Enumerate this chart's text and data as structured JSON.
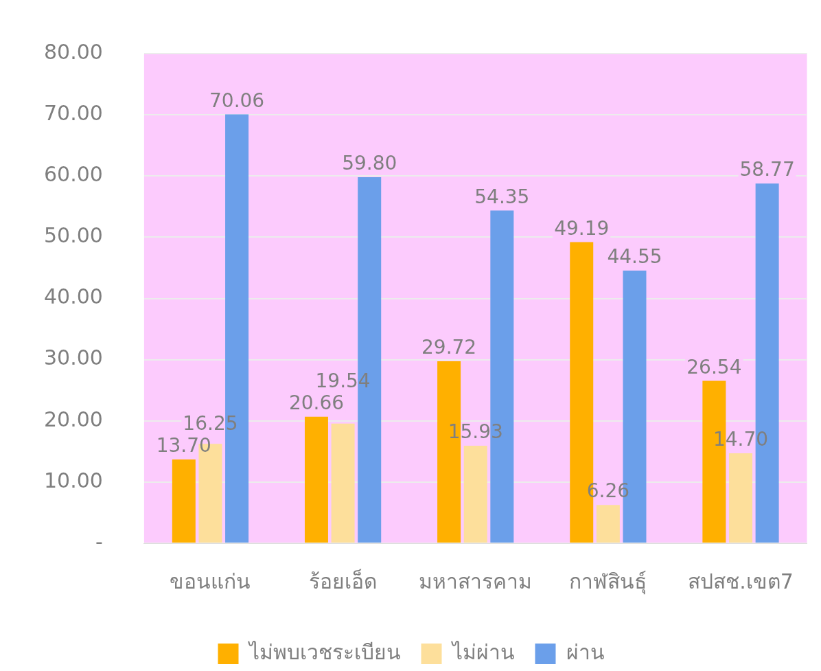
{
  "chart_data": {
    "type": "bar",
    "categories": [
      "ขอนแก่น",
      "ร้อยเอ็ด",
      "มหาสารคาม",
      "กาฬสินธุ์",
      "สปสช.เขต7"
    ],
    "series": [
      {
        "name": "ไม่พบเวชระเบียน",
        "color": "#ffb000",
        "values": [
          13.7,
          20.66,
          29.72,
          49.19,
          26.54
        ],
        "value_labels": [
          "13.70",
          "20.66",
          "29.72",
          "49.19",
          "26.54"
        ]
      },
      {
        "name": "ไม่ผ่าน",
        "color": "#fddf9b",
        "values": [
          16.25,
          19.54,
          15.93,
          6.26,
          14.7
        ],
        "value_labels": [
          "16.25",
          "19.54",
          "15.93",
          "6.26",
          "14.70"
        ]
      },
      {
        "name": "ผ่าน",
        "color": "#6b9fea",
        "values": [
          70.06,
          59.8,
          54.35,
          44.55,
          58.77
        ],
        "value_labels": [
          "70.06",
          "59.80",
          "54.35",
          "44.55",
          "58.77"
        ]
      }
    ],
    "ylim": [
      0,
      80
    ],
    "yticks": [
      {
        "value": 0,
        "label": "-"
      },
      {
        "value": 10,
        "label": "10.00"
      },
      {
        "value": 20,
        "label": "20.00"
      },
      {
        "value": 30,
        "label": "30.00"
      },
      {
        "value": 40,
        "label": "40.00"
      },
      {
        "value": 50,
        "label": "50.00"
      },
      {
        "value": 60,
        "label": "60.00"
      },
      {
        "value": 70,
        "label": "70.00"
      },
      {
        "value": 80,
        "label": "80.00"
      }
    ],
    "grid": "y",
    "legend": "bottom"
  }
}
